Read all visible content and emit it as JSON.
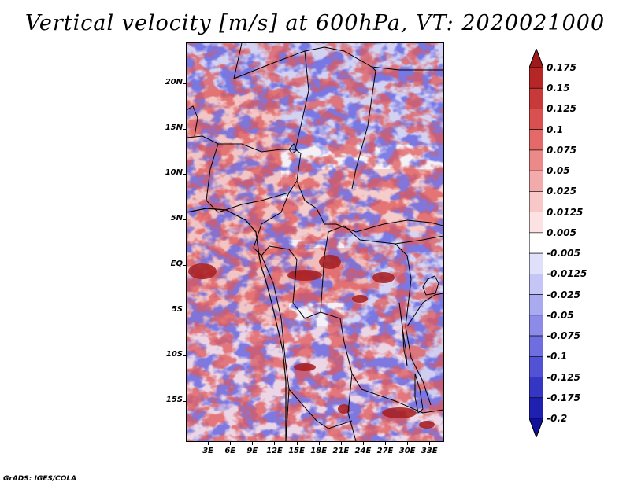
{
  "title": "Vertical velocity [m/s] at 600hPa, VT: 2020021000",
  "credit": "GrADS: IGES/COLA",
  "map": {
    "lon_range": [
      0,
      35
    ],
    "lat_range": [
      -19.5,
      24.5
    ],
    "lat_labels": [
      {
        "lat": 20,
        "label": "20N"
      },
      {
        "lat": 15,
        "label": "15N"
      },
      {
        "lat": 10,
        "label": "10N"
      },
      {
        "lat": 5,
        "label": "5N"
      },
      {
        "lat": 0,
        "label": "EQ"
      },
      {
        "lat": -5,
        "label": "5S"
      },
      {
        "lat": -10,
        "label": "10S"
      },
      {
        "lat": -15,
        "label": "15S"
      }
    ],
    "lon_labels": [
      {
        "lon": 3,
        "label": "3E"
      },
      {
        "lon": 6,
        "label": "6E"
      },
      {
        "lon": 9,
        "label": "9E"
      },
      {
        "lon": 12,
        "label": "12E"
      },
      {
        "lon": 15,
        "label": "15E"
      },
      {
        "lon": 18,
        "label": "18E"
      },
      {
        "lon": 21,
        "label": "21E"
      },
      {
        "lon": 24,
        "label": "24E"
      },
      {
        "lon": 27,
        "label": "27E"
      },
      {
        "lon": 30,
        "label": "30E"
      },
      {
        "lon": 33,
        "label": "33E"
      }
    ]
  },
  "colorbar": {
    "labels": [
      "0.175",
      "0.15",
      "0.125",
      "0.1",
      "0.075",
      "0.05",
      "0.025",
      "0.0125",
      "0.005",
      "-0.005",
      "-0.0125",
      "-0.025",
      "-0.05",
      "-0.075",
      "-0.1",
      "-0.125",
      "-0.175",
      "-0.2"
    ],
    "colors": [
      "#a01818",
      "#b52626",
      "#c83a3a",
      "#d95050",
      "#e46a6a",
      "#ec8a8a",
      "#f3aaaa",
      "#f8c8c8",
      "#fce2e2",
      "#ffffff",
      "#e0e0fb",
      "#c6c6f6",
      "#aaaaf0",
      "#8c8ce8",
      "#6e6ee0",
      "#5252d4",
      "#3636c4",
      "#2020b0",
      "#10109a"
    ]
  }
}
